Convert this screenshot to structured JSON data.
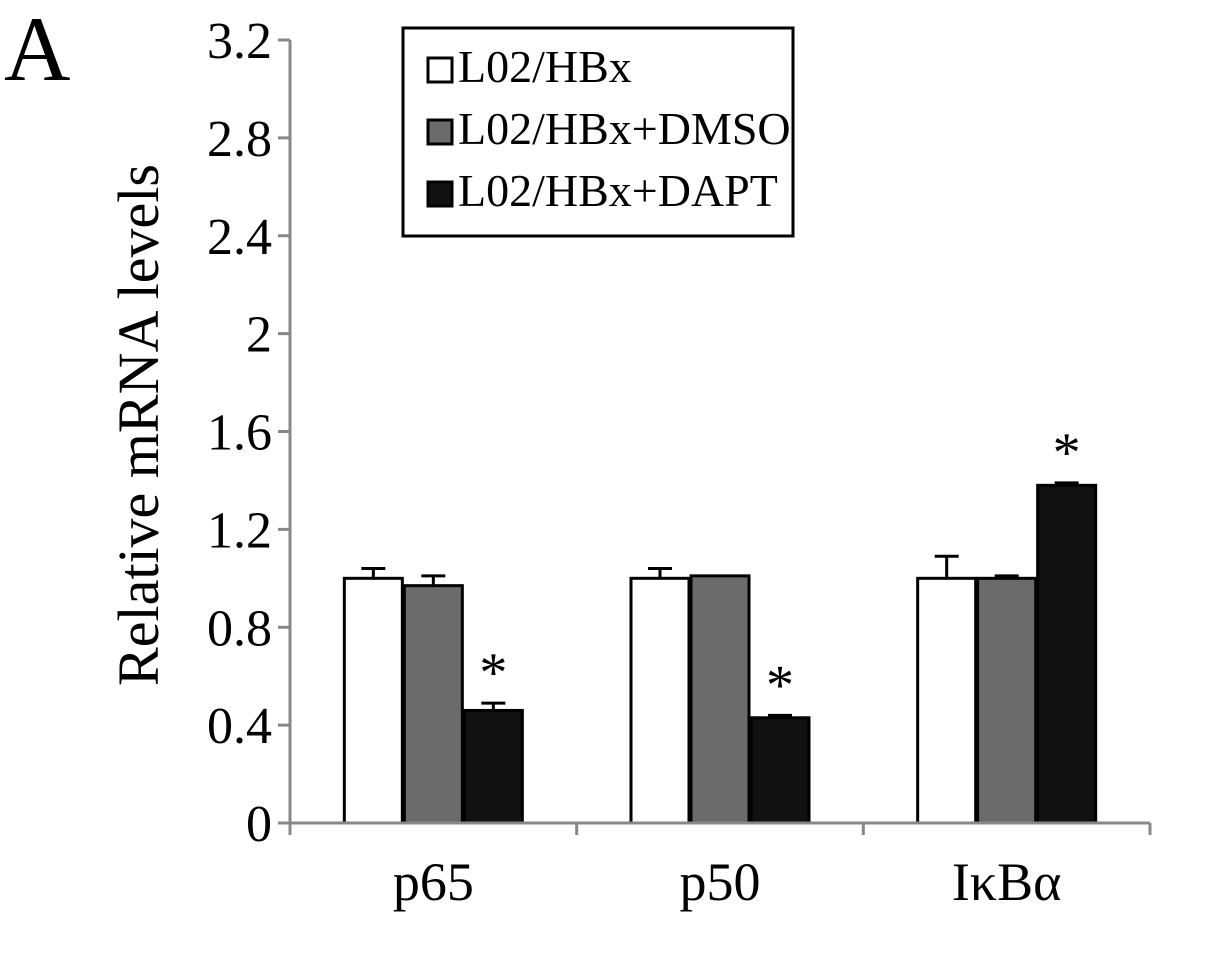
{
  "panel_label": "A",
  "chart_data": {
    "type": "bar",
    "title": "",
    "xlabel": "",
    "ylabel": "Relative mRNA levels",
    "ylim": [
      0,
      3.2
    ],
    "yticks": [
      "0",
      "0.4",
      "0.8",
      "1.2",
      "1.6",
      "2",
      "2.4",
      "2.8",
      "3.2"
    ],
    "categories": [
      "p65",
      "p50",
      "IκBα"
    ],
    "series": [
      {
        "name": "L02/HBx",
        "values": [
          1.0,
          1.0,
          1.0
        ],
        "errors": [
          0.04,
          0.04,
          0.09
        ],
        "color": "#ffffff"
      },
      {
        "name": "L02/HBx+DMSO",
        "values": [
          0.97,
          1.01,
          1.0
        ],
        "errors": [
          0.04,
          0.0,
          0.01
        ],
        "color": "#6b6b6b"
      },
      {
        "name": "L02/HBx+DAPT",
        "values": [
          0.46,
          0.43,
          1.38
        ],
        "errors": [
          0.03,
          0.01,
          0.01
        ],
        "color": "#111111"
      }
    ],
    "significance": [
      {
        "category": "p65",
        "series": "L02/HBx+DAPT",
        "text": "*"
      },
      {
        "category": "p50",
        "series": "L02/HBx+DAPT",
        "text": "*"
      },
      {
        "category": "IκBα",
        "series": "L02/HBx+DAPT",
        "text": "*"
      }
    ],
    "legend_position": "top-left",
    "grid": false
  }
}
